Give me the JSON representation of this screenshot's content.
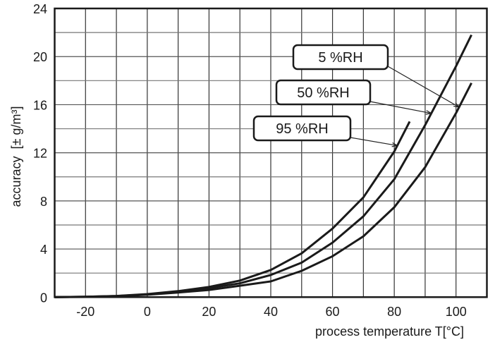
{
  "chart_data": {
    "type": "line",
    "title": "",
    "xlabel": "process temperature T[°C]",
    "ylabel": "accuracy  [± g/m³]",
    "xlim": [
      -30,
      110
    ],
    "ylim": [
      0,
      24
    ],
    "x_ticks": [
      -20,
      0,
      20,
      40,
      60,
      80,
      100
    ],
    "y_ticks": [
      0,
      4,
      8,
      12,
      16,
      20,
      24
    ],
    "x_grid_step": 10,
    "y_grid_step": 2,
    "grid": true,
    "series": [
      {
        "name": "95 %RH",
        "x": [
          -30,
          -20,
          -10,
          0,
          10,
          20,
          30,
          40,
          50,
          60,
          70,
          80,
          85
        ],
        "y": [
          0,
          0.03,
          0.1,
          0.25,
          0.5,
          0.85,
          1.38,
          2.26,
          3.64,
          5.7,
          8.3,
          12.1,
          14.6
        ]
      },
      {
        "name": "50 %RH",
        "x": [
          -30,
          -20,
          -10,
          0,
          10,
          20,
          30,
          40,
          50,
          60,
          70,
          80,
          90,
          100,
          105
        ],
        "y": [
          0,
          0.03,
          0.09,
          0.22,
          0.45,
          0.75,
          1.15,
          1.84,
          2.87,
          4.53,
          6.72,
          9.8,
          14.3,
          19.2,
          21.8
        ]
      },
      {
        "name": "5 %RH",
        "x": [
          -30,
          -20,
          -10,
          0,
          10,
          20,
          30,
          40,
          50,
          60,
          70,
          80,
          90,
          100,
          105
        ],
        "y": [
          0,
          0.02,
          0.08,
          0.2,
          0.38,
          0.6,
          0.95,
          1.31,
          2.19,
          3.4,
          5.06,
          7.47,
          10.8,
          15.3,
          17.8
        ]
      }
    ],
    "annotations": [
      {
        "text": "5 %RH",
        "points_to_series": "5 %RH",
        "at_x": 101
      },
      {
        "text": "50 %RH",
        "points_to_series": "50 %RH",
        "at_x": 92
      },
      {
        "text": "95 %RH",
        "points_to_series": "95 %RH",
        "at_x": 81
      }
    ]
  }
}
